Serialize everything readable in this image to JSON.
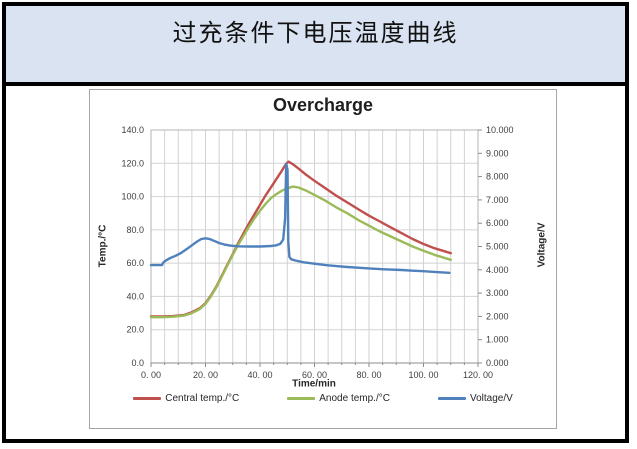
{
  "header": {
    "title": "过充条件下电压温度曲线",
    "background": "#d9e3f1"
  },
  "chart_data": {
    "type": "line",
    "title": "Overcharge",
    "grid": true,
    "legend_position": "bottom",
    "x_axis": {
      "label": "Time/min",
      "min": 0,
      "max": 120,
      "tick_step": 20,
      "minor_grid_step": 5,
      "tick_labels": [
        "0. 00",
        "20. 00",
        "40. 00",
        "60. 00",
        "80. 00",
        "100. 00",
        "120. 00"
      ]
    },
    "y_axis_left": {
      "label": "Temp./°C",
      "min": 0,
      "max": 140,
      "tick_step": 20,
      "tick_labels": [
        "0.0",
        "20.0",
        "40.0",
        "60.0",
        "80.0",
        "100.0",
        "120.0",
        "140.0"
      ]
    },
    "y_axis_right": {
      "label": "Voltage/V",
      "min": 0,
      "max": 10,
      "tick_step": 1,
      "tick_labels": [
        "0.000",
        "1.000",
        "2.000",
        "3.000",
        "4.000",
        "5.000",
        "6.000",
        "7.000",
        "8.000",
        "9.000",
        "10.000"
      ]
    },
    "series": [
      {
        "name": "Central temp./°C",
        "axis": "left",
        "color": "#c0504d",
        "points": [
          [
            0,
            28
          ],
          [
            4,
            28
          ],
          [
            8,
            28.2
          ],
          [
            12,
            28.8
          ],
          [
            15,
            30.5
          ],
          [
            18,
            33
          ],
          [
            20,
            36
          ],
          [
            22,
            40.5
          ],
          [
            24,
            46
          ],
          [
            26,
            52.5
          ],
          [
            28,
            59
          ],
          [
            30,
            65.5
          ],
          [
            32,
            72
          ],
          [
            34,
            78
          ],
          [
            36,
            84
          ],
          [
            38,
            89.5
          ],
          [
            40,
            95
          ],
          [
            42,
            100.5
          ],
          [
            44,
            105.5
          ],
          [
            46,
            110.5
          ],
          [
            48,
            115.5
          ],
          [
            49.5,
            119.5
          ],
          [
            50.5,
            121
          ],
          [
            52,
            119.5
          ],
          [
            54,
            117
          ],
          [
            57,
            113
          ],
          [
            60,
            109.5
          ],
          [
            64,
            105
          ],
          [
            68,
            100.5
          ],
          [
            72,
            96.5
          ],
          [
            76,
            92.5
          ],
          [
            80,
            88.5
          ],
          [
            84,
            85
          ],
          [
            88,
            81.5
          ],
          [
            92,
            78
          ],
          [
            96,
            74.5
          ],
          [
            100,
            71.5
          ],
          [
            104,
            69
          ],
          [
            107,
            67.5
          ],
          [
            110,
            66
          ]
        ]
      },
      {
        "name": "Anode temp./°C",
        "axis": "left",
        "color": "#9bbb59",
        "points": [
          [
            0,
            27.5
          ],
          [
            4,
            27.5
          ],
          [
            8,
            27.8
          ],
          [
            12,
            28.4
          ],
          [
            15,
            30
          ],
          [
            18,
            32.5
          ],
          [
            20,
            35.5
          ],
          [
            22,
            40
          ],
          [
            24,
            45.5
          ],
          [
            26,
            52
          ],
          [
            28,
            58.5
          ],
          [
            30,
            65
          ],
          [
            32,
            71
          ],
          [
            34,
            76.5
          ],
          [
            36,
            82
          ],
          [
            38,
            87
          ],
          [
            40,
            91.5
          ],
          [
            42,
            95.5
          ],
          [
            44,
            99
          ],
          [
            46,
            101.5
          ],
          [
            48,
            103.5
          ],
          [
            50,
            105
          ],
          [
            52,
            106
          ],
          [
            54,
            105.5
          ],
          [
            57,
            103.5
          ],
          [
            60,
            101
          ],
          [
            64,
            97.5
          ],
          [
            68,
            93.5
          ],
          [
            72,
            90
          ],
          [
            76,
            86
          ],
          [
            80,
            82.5
          ],
          [
            84,
            79
          ],
          [
            88,
            76
          ],
          [
            92,
            73
          ],
          [
            96,
            70
          ],
          [
            100,
            67.5
          ],
          [
            104,
            65
          ],
          [
            107,
            63.5
          ],
          [
            110,
            62
          ]
        ]
      },
      {
        "name": "Voltage/V",
        "axis": "right",
        "color": "#4f81bd",
        "points": [
          [
            0,
            4.2
          ],
          [
            2,
            4.2
          ],
          [
            4,
            4.2
          ],
          [
            4.6,
            4.32
          ],
          [
            5.2,
            4.38
          ],
          [
            7,
            4.5
          ],
          [
            9,
            4.6
          ],
          [
            11,
            4.72
          ],
          [
            13,
            4.88
          ],
          [
            15,
            5.05
          ],
          [
            17,
            5.22
          ],
          [
            18.5,
            5.32
          ],
          [
            20,
            5.35
          ],
          [
            21.5,
            5.32
          ],
          [
            23,
            5.25
          ],
          [
            25,
            5.15
          ],
          [
            27,
            5.08
          ],
          [
            29,
            5.04
          ],
          [
            32,
            5.01
          ],
          [
            36,
            5.0
          ],
          [
            40,
            5.0
          ],
          [
            44,
            5.02
          ],
          [
            46,
            5.05
          ],
          [
            47.5,
            5.12
          ],
          [
            48.5,
            5.3
          ],
          [
            49.2,
            6.2
          ],
          [
            49.6,
            8.55
          ],
          [
            50.1,
            8.3
          ],
          [
            50.4,
            5.2
          ],
          [
            50.8,
            4.55
          ],
          [
            51.5,
            4.45
          ],
          [
            53,
            4.4
          ],
          [
            56,
            4.32
          ],
          [
            60,
            4.26
          ],
          [
            64,
            4.2
          ],
          [
            68,
            4.16
          ],
          [
            72,
            4.12
          ],
          [
            76,
            4.09
          ],
          [
            80,
            4.06
          ],
          [
            84,
            4.03
          ],
          [
            88,
            4.01
          ],
          [
            92,
            3.99
          ],
          [
            96,
            3.96
          ],
          [
            100,
            3.94
          ],
          [
            104,
            3.91
          ],
          [
            107,
            3.89
          ],
          [
            109.5,
            3.87
          ]
        ]
      }
    ],
    "style": {
      "grid_color": "#d2d2d2",
      "plot_border_color": "#b3b3b3",
      "axis_line_color": "#8c8c8c",
      "tick_label_color": "#404040"
    }
  }
}
